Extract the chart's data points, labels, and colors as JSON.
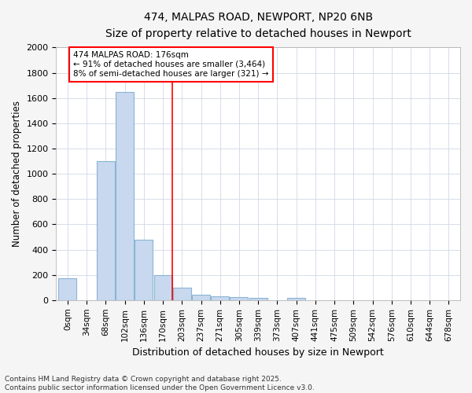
{
  "title_line1": "474, MALPAS ROAD, NEWPORT, NP20 6NB",
  "title_line2": "Size of property relative to detached houses in Newport",
  "xlabel": "Distribution of detached houses by size in Newport",
  "ylabel": "Number of detached properties",
  "bar_labels": [
    "0sqm",
    "34sqm",
    "68sqm",
    "102sqm",
    "136sqm",
    "170sqm",
    "203sqm",
    "237sqm",
    "271sqm",
    "305sqm",
    "339sqm",
    "373sqm",
    "407sqm",
    "441sqm",
    "475sqm",
    "509sqm",
    "542sqm",
    "576sqm",
    "610sqm",
    "644sqm",
    "678sqm"
  ],
  "bar_values": [
    175,
    0,
    1100,
    1650,
    480,
    200,
    100,
    40,
    30,
    25,
    20,
    0,
    15,
    0,
    0,
    0,
    0,
    0,
    0,
    0,
    0
  ],
  "bar_color": "#c8d8ef",
  "bar_edgecolor": "#8ab4d4",
  "ylim": [
    0,
    2000
  ],
  "yticks": [
    0,
    200,
    400,
    600,
    800,
    1000,
    1200,
    1400,
    1600,
    1800,
    2000
  ],
  "vline_x": 5.5,
  "annotation_title": "474 MALPAS ROAD: 176sqm",
  "annotation_line2": "← 91% of detached houses are smaller (3,464)",
  "annotation_line3": "8% of semi-detached houses are larger (321) →",
  "footer_line1": "Contains HM Land Registry data © Crown copyright and database right 2025.",
  "footer_line2": "Contains public sector information licensed under the Open Government Licence v3.0.",
  "background_color": "#f5f5f5",
  "plot_background": "#ffffff",
  "grid_color": "#d0d8e8"
}
